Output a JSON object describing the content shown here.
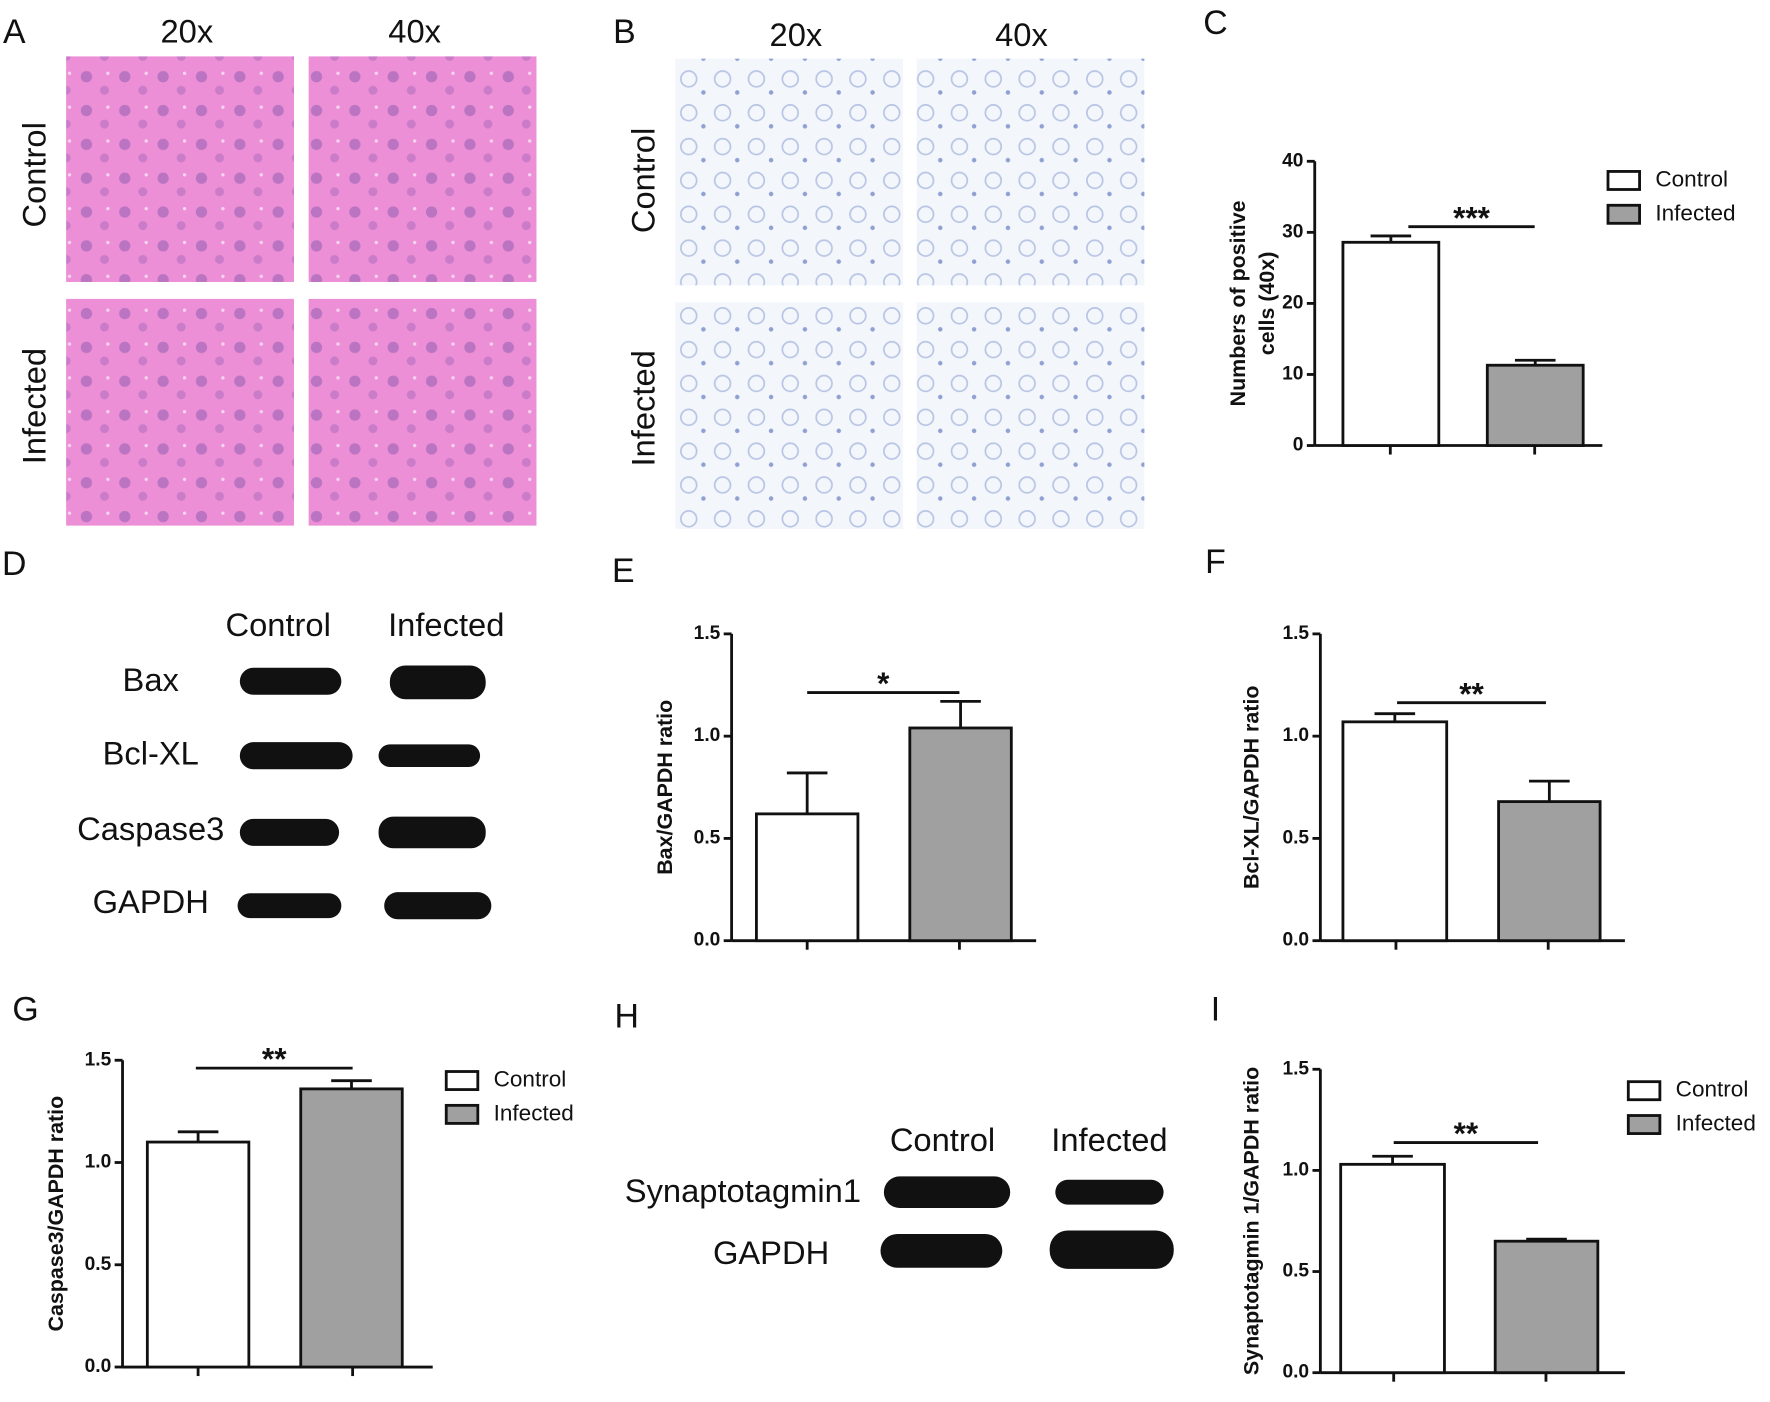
{
  "panel_letters": [
    "A",
    "B",
    "C",
    "D",
    "E",
    "F",
    "G",
    "H",
    "I"
  ],
  "panel_a": {
    "columns": [
      "20x",
      "40x"
    ],
    "rows": [
      "Control",
      "Infected"
    ]
  },
  "panel_b": {
    "columns": [
      "20x",
      "40x"
    ],
    "rows": [
      "Control",
      "Infected"
    ]
  },
  "panel_d": {
    "columns": [
      "Control",
      "Infected"
    ],
    "rows": [
      "Bax",
      "Bcl-XL",
      "Caspase3",
      "GAPDH"
    ]
  },
  "panel_h": {
    "columns": [
      "Control",
      "Infected"
    ],
    "rows": [
      "Synaptotagmin1",
      "GAPDH"
    ]
  },
  "chart_data": [
    {
      "type": "bar",
      "ylabel": [
        "Numbers of positive",
        "cells (40x)"
      ],
      "categories": [
        null,
        null
      ],
      "values": [
        28.6,
        11.3
      ],
      "errors": [
        0.9,
        0.7
      ],
      "colors": [
        "#ffffff",
        "#a0a0a0"
      ],
      "ylim": [
        0,
        40
      ],
      "yticks": [
        0,
        10,
        20,
        30,
        40
      ],
      "significance": "***",
      "legend": [
        "Control",
        "Infected"
      ]
    },
    {
      "type": "bar",
      "ylabel": "Bax/GAPDH ratio",
      "categories": [
        null,
        null
      ],
      "values": [
        0.62,
        1.04
      ],
      "errors": [
        0.2,
        0.13
      ],
      "colors": [
        "#ffffff",
        "#a0a0a0"
      ],
      "ylim": [
        0,
        1.5
      ],
      "yticks": [
        {
          "value": 0,
          "label": "0.0"
        },
        0.5,
        {
          "value": 1,
          "label": "1.0"
        },
        1.5
      ],
      "significance": "*"
    },
    {
      "type": "bar",
      "ylabel": "Bcl-XL/GAPDH ratio",
      "categories": [
        null,
        null
      ],
      "values": [
        1.07,
        0.68
      ],
      "errors": [
        0.04,
        0.1
      ],
      "colors": [
        "#ffffff",
        "#a0a0a0"
      ],
      "ylim": [
        0,
        1.5
      ],
      "yticks": [
        {
          "value": 0,
          "label": "0.0"
        },
        0.5,
        {
          "value": 1,
          "label": "1.0"
        },
        1.5
      ],
      "significance": "**"
    },
    {
      "type": "bar",
      "ylabel": "Caspase3/GAPDH ratio",
      "categories": [
        null,
        null
      ],
      "values": [
        1.1,
        1.36
      ],
      "errors": [
        0.05,
        0.04
      ],
      "colors": [
        "#ffffff",
        "#a0a0a0"
      ],
      "ylim": [
        0,
        1.5
      ],
      "yticks": [
        {
          "value": 0,
          "label": "0.0"
        },
        0.5,
        {
          "value": 1,
          "label": "1.0"
        },
        1.5
      ],
      "significance": "**",
      "legend": [
        "Control",
        "Infected"
      ]
    },
    {
      "type": "bar",
      "ylabel": "Synaptotagmin 1/GAPDH ratio",
      "categories": [
        null,
        null
      ],
      "values": [
        1.03,
        0.65
      ],
      "errors": [
        0.04,
        0.01
      ],
      "colors": [
        "#ffffff",
        "#a0a0a0"
      ],
      "ylim": [
        0,
        1.5
      ],
      "yticks": [
        {
          "value": 0,
          "label": "0.0"
        },
        0.5,
        {
          "value": 1,
          "label": "1.0"
        },
        1.5
      ],
      "significance": "**",
      "legend": [
        "Control",
        "Infected"
      ]
    }
  ]
}
